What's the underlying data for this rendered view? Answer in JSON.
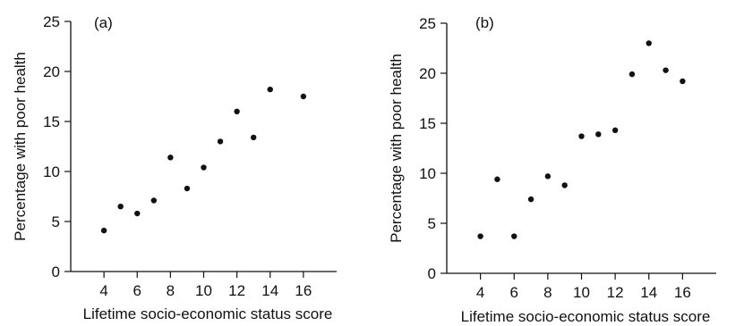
{
  "chart_data": [
    {
      "type": "scatter",
      "panel_label": "(a)",
      "xlabel": "Lifetime socio-economic status score",
      "ylabel": "Percentage with poor health",
      "xlim": [
        2,
        18
      ],
      "ylim": [
        0,
        25
      ],
      "xticks": [
        4,
        6,
        8,
        10,
        12,
        14,
        16
      ],
      "yticks": [
        0,
        5,
        10,
        15,
        20,
        25
      ],
      "grid": false,
      "x": [
        4,
        5,
        6,
        7,
        8,
        9,
        10,
        11,
        12,
        13,
        14,
        16
      ],
      "y": [
        4.1,
        6.5,
        5.8,
        7.1,
        11.4,
        8.3,
        10.4,
        13.0,
        16.0,
        13.4,
        18.2,
        17.5
      ]
    },
    {
      "type": "scatter",
      "panel_label": "(b)",
      "xlabel": "Lifetime socio-economic status score",
      "ylabel": "Percentage with poor health",
      "xlim": [
        2,
        18
      ],
      "ylim": [
        0,
        25
      ],
      "xticks": [
        4,
        6,
        8,
        10,
        12,
        14,
        16
      ],
      "yticks": [
        0,
        5,
        10,
        15,
        20,
        25
      ],
      "grid": false,
      "x": [
        4,
        5,
        6,
        7,
        8,
        9,
        10,
        11,
        12,
        13,
        14,
        15,
        16
      ],
      "y": [
        3.7,
        9.4,
        3.7,
        7.4,
        9.7,
        8.8,
        13.7,
        13.9,
        14.3,
        19.9,
        23.0,
        20.3,
        19.2
      ]
    }
  ]
}
